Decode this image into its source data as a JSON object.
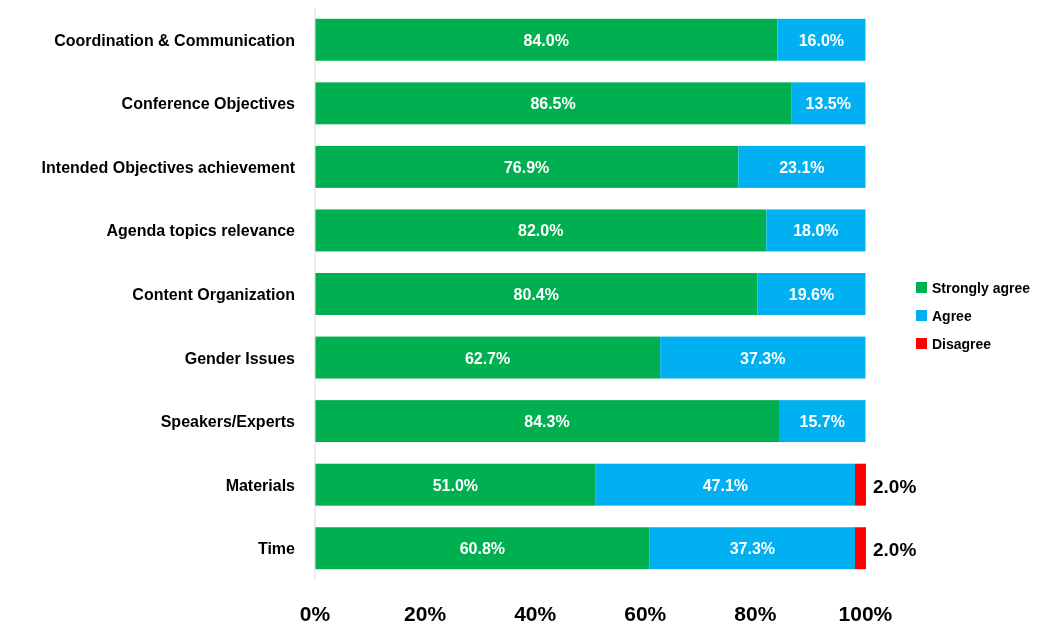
{
  "chart_data": {
    "type": "bar",
    "orientation": "horizontal",
    "stacked": true,
    "categories": [
      "Coordination & Communication",
      "Conference Objectives",
      "Intended Objectives achievement",
      "Agenda topics relevance",
      "Content Organization",
      "Gender Issues",
      "Speakers/Experts",
      "Materials",
      "Time"
    ],
    "series": [
      {
        "name": "Strongly agree",
        "color": "#00b050",
        "values": [
          84.0,
          86.5,
          76.9,
          82.0,
          80.4,
          62.7,
          84.3,
          51.0,
          60.8
        ],
        "value_labels": [
          "84.0%",
          "86.5%",
          "76.9%",
          "82.0%",
          "80.4%",
          "62.7%",
          "84.3%",
          "51.0%",
          "60.8%"
        ]
      },
      {
        "name": "Agree",
        "color": "#00b0f0",
        "values": [
          16.0,
          13.5,
          23.1,
          18.0,
          19.6,
          37.3,
          15.7,
          47.1,
          37.3
        ],
        "value_labels": [
          "16.0%",
          "13.5%",
          "23.1%",
          "18.0%",
          "19.6%",
          "37.3%",
          "15.7%",
          "47.1%",
          "37.3%"
        ]
      },
      {
        "name": "Disagree",
        "color": "#ff0000",
        "values": [
          0,
          0,
          0,
          0,
          0,
          0,
          0,
          2.0,
          2.0
        ],
        "value_labels": [
          null,
          null,
          null,
          null,
          null,
          null,
          null,
          "2.0%",
          "2.0%"
        ]
      }
    ],
    "xlim": [
      0,
      100.1
    ],
    "xticks": [
      {
        "value": 0,
        "label": "0%"
      },
      {
        "value": 20,
        "label": "20%"
      },
      {
        "value": 40,
        "label": "40%"
      },
      {
        "value": 60,
        "label": "60%"
      },
      {
        "value": 80,
        "label": "80%"
      },
      {
        "value": 100,
        "label": "100%"
      }
    ],
    "legend": "right"
  }
}
